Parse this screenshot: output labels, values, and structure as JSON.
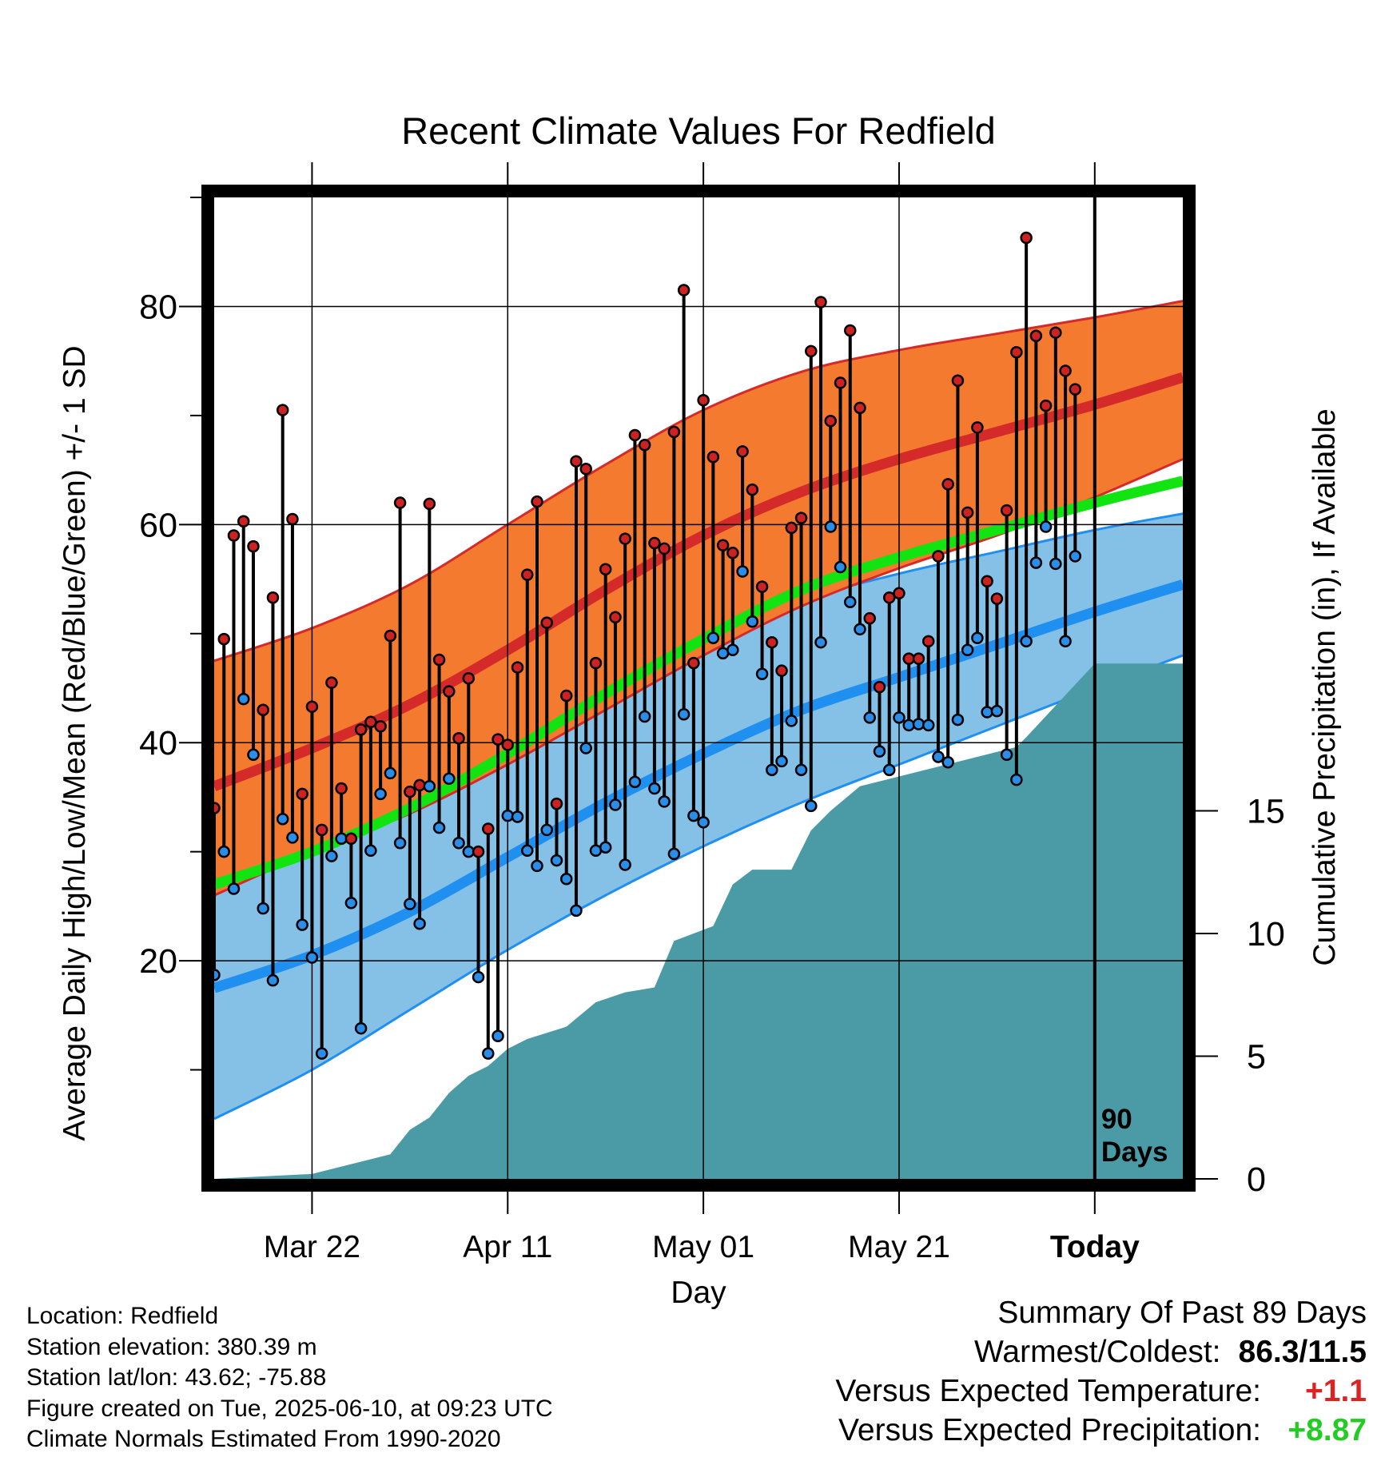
{
  "title": "Recent Climate Values For Redfield",
  "y_label_left": "Average Daily High/Low/Mean (Red/Blue/Green) +/- 1 SD",
  "y_label_right": "Cumulative Precipitation (in), If Available",
  "x_label": "Day",
  "x_ticks": [
    "Mar 22",
    "Apr 11",
    "May 01",
    "May 21",
    "Today"
  ],
  "y_ticks_left": [
    "20",
    "40",
    "60",
    "80"
  ],
  "y_ticks_right": [
    "0",
    "5",
    "10",
    "15"
  ],
  "today_marker": {
    "line1": "90",
    "line2": "Days"
  },
  "colors": {
    "high_band": "#f47a30",
    "high_mean": "#d42a2a",
    "low_band": "#85c1e7",
    "low_mean": "#1f8ff0",
    "mean": "#11e411",
    "precip": "#4a9ba5",
    "high_dot": "#cc2222",
    "low_dot": "#2a8ee8",
    "temp_positive": "#dd2222",
    "precip_positive": "#22cc22"
  },
  "info": {
    "location": "Location: Redfield",
    "elevation": "Station elevation: 380.39 m",
    "latlon": "Station lat/lon: 43.62; -75.88",
    "created": "Figure created on Tue, 2025-06-10, at 09:23 UTC",
    "normals": "Climate Normals Estimated From 1990-2020"
  },
  "summary": {
    "heading": "Summary Of Past 89 Days",
    "warm_cold_label": "Warmest/Coldest:",
    "warm_cold_value": "86.3/11.5",
    "temp_label": "Versus Expected Temperature:",
    "temp_value": "+1.1",
    "precip_label": "Versus Expected Precipitation:",
    "precip_value": "+8.87"
  },
  "chart_data": {
    "type": "line",
    "xlabel": "Day",
    "ylabel": "Average Daily High/Low/Mean (Red/Blue/Green) +/- 1 SD",
    "y2label": "Cumulative Precipitation (in), If Available",
    "x_range_days": [
      -90,
      9
    ],
    "ylim": [
      0,
      90
    ],
    "y2lim": [
      0,
      40
    ],
    "x_tick_days": [
      -80,
      -60,
      -40,
      -20,
      0
    ],
    "normals": {
      "days": [
        -90,
        -80,
        -70,
        -60,
        -50,
        -40,
        -30,
        -20,
        -10,
        0,
        9
      ],
      "high_mean": [
        36,
        39.5,
        43.5,
        48.5,
        54,
        59,
        63,
        66,
        68.5,
        71,
        73.5
      ],
      "high_sd_upper": [
        47.5,
        50.5,
        54.5,
        60,
        65.5,
        70.5,
        74,
        76,
        77.5,
        79,
        80.5
      ],
      "high_sd_lower": [
        26,
        30,
        33.5,
        38,
        43,
        48,
        52.5,
        56,
        59,
        62.5,
        66
      ],
      "low_mean": [
        17.5,
        20.5,
        24.5,
        29.5,
        34.5,
        39,
        43,
        46,
        49,
        52,
        54.5
      ],
      "low_sd_upper": [
        30,
        32,
        35.5,
        40,
        44.5,
        49,
        53,
        55.5,
        57.5,
        59.5,
        61
      ],
      "low_sd_lower": [
        5.5,
        10,
        15.5,
        21,
        26,
        30.5,
        34.5,
        38,
        41.5,
        45,
        48
      ],
      "mean": [
        27,
        30,
        34,
        39,
        44.5,
        49.5,
        54,
        57,
        59.5,
        62,
        64
      ]
    },
    "daily": {
      "day_start": -90,
      "high": [
        34,
        49.5,
        59,
        60.3,
        58,
        43,
        53.3,
        70.5,
        60.5,
        35.3,
        43.3,
        32,
        45.5,
        35.8,
        31.2,
        41.2,
        41.9,
        41.5,
        49.8,
        62,
        35.5,
        36.1,
        61.9,
        47.6,
        44.7,
        40.4,
        45.9,
        30,
        32.1,
        40.3,
        39.8,
        46.9,
        55.4,
        62.1,
        51,
        34.4,
        44.3,
        65.8,
        65.1,
        47.3,
        55.9,
        51.5,
        58.7,
        68.2,
        67.3,
        58.3,
        57.8,
        68.5,
        81.5,
        47.3,
        71.4,
        66.2,
        58.1,
        57.4,
        66.7,
        63.2,
        54.3,
        49.2,
        46.6,
        59.7,
        60.6,
        75.9,
        80.4,
        69.5,
        73,
        77.8,
        70.7,
        51.4,
        45.1,
        53.3,
        53.7,
        47.7,
        47.7,
        49.3,
        57.1,
        63.7,
        73.2,
        61.1,
        68.9,
        54.8,
        53.2,
        61.3,
        75.8,
        86.3,
        77.3,
        70.9,
        77.6,
        74.1,
        72.4
      ],
      "low": [
        18.7,
        30,
        26.6,
        44,
        38.9,
        24.8,
        18.2,
        33,
        31.3,
        23.3,
        20.3,
        11.5,
        29.6,
        31.2,
        25.3,
        13.8,
        30.1,
        35.3,
        37.2,
        30.8,
        25.2,
        23.4,
        36,
        32.2,
        36.7,
        30.8,
        30,
        18.5,
        11.5,
        13.1,
        33.3,
        33.2,
        30.1,
        28.7,
        32,
        29.2,
        27.5,
        24.6,
        39.5,
        30.1,
        30.4,
        34.3,
        28.8,
        36.4,
        42.4,
        35.8,
        34.6,
        29.8,
        42.6,
        33.3,
        32.7,
        49.6,
        48.2,
        48.5,
        55.7,
        51.1,
        46.3,
        37.5,
        38.3,
        42,
        37.5,
        34.2,
        49.2,
        59.8,
        56.1,
        52.9,
        50.4,
        42.3,
        39.2,
        37.5,
        42.3,
        41.6,
        41.7,
        41.6,
        38.7,
        38.2,
        42.1,
        48.5,
        49.6,
        42.8,
        42.9,
        38.9,
        36.6,
        49.3,
        56.5,
        59.8,
        56.4,
        49.3,
        57.1
      ]
    },
    "precip_cumulative": {
      "days": [
        -90,
        -85,
        -80,
        -77,
        -75,
        -72,
        -70,
        -68,
        -66,
        -64,
        -62,
        -60,
        -58,
        -54,
        -51,
        -48,
        -45,
        -43,
        -41,
        -39,
        -37,
        -35,
        -33,
        -31,
        -29,
        -27,
        -24,
        -20,
        -18,
        -14,
        -8,
        -7,
        0,
        9
      ],
      "values": [
        0,
        0.1,
        0.2,
        0.5,
        0.7,
        1,
        2,
        2.5,
        3.5,
        4.2,
        4.6,
        5.3,
        5.7,
        6.2,
        7.2,
        7.6,
        7.8,
        9.7,
        10,
        10.3,
        12,
        12.6,
        12.6,
        12.6,
        14.2,
        15,
        16,
        16.4,
        16.6,
        17,
        17.6,
        18,
        21,
        21
      ]
    }
  }
}
